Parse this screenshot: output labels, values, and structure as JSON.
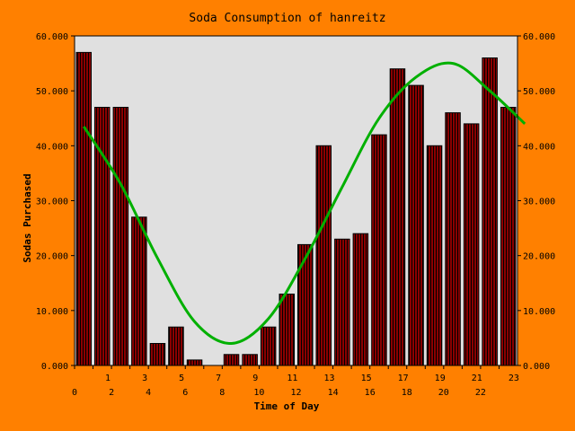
{
  "chart_data": {
    "type": "bar",
    "title": "Soda Consumption of hanreitz",
    "xlabel": "Time of Day",
    "ylabel": "Sodas Purchased",
    "categories": [
      "0",
      "1",
      "2",
      "3",
      "4",
      "5",
      "6",
      "7",
      "8",
      "9",
      "10",
      "11",
      "12",
      "13",
      "14",
      "15",
      "16",
      "17",
      "18",
      "19",
      "20",
      "21",
      "22",
      "23"
    ],
    "series": [
      {
        "values": [
          57,
          47,
          47,
          27,
          4,
          7,
          1,
          0,
          2,
          2,
          7,
          13,
          22,
          40,
          23,
          24,
          42,
          54,
          51,
          40,
          46,
          44,
          56,
          47
        ]
      }
    ],
    "trend_line": {
      "type": "sinusoid fit",
      "x": [
        0,
        2,
        4,
        6,
        8,
        10,
        12,
        14,
        16,
        18,
        20,
        22,
        23.9
      ],
      "y": [
        43.5,
        33.0,
        19.5,
        8.0,
        4.0,
        8.5,
        19.5,
        32.5,
        45.0,
        52.5,
        55.0,
        50.0,
        44.0
      ]
    },
    "ylim": [
      0,
      60
    ],
    "y_ticks": [
      "0.000",
      "10.000",
      "20.000",
      "30.000",
      "40.000",
      "50.000",
      "60.000"
    ],
    "x_tick_labels": [
      "0",
      "1",
      "2",
      "3",
      "4",
      "5",
      "6",
      "7",
      "8",
      "9",
      "10",
      "11",
      "12",
      "13",
      "14",
      "15",
      "16",
      "17",
      "18",
      "19",
      "20",
      "21",
      "22",
      "23"
    ],
    "secondary_y_axis": true,
    "grid": false,
    "colors": {
      "background": "#ff8000",
      "plot_area": "#e0e0e0",
      "bar_fill": "#8b0000",
      "bar_stripe": "#000000",
      "trend_line": "#00b000"
    }
  }
}
